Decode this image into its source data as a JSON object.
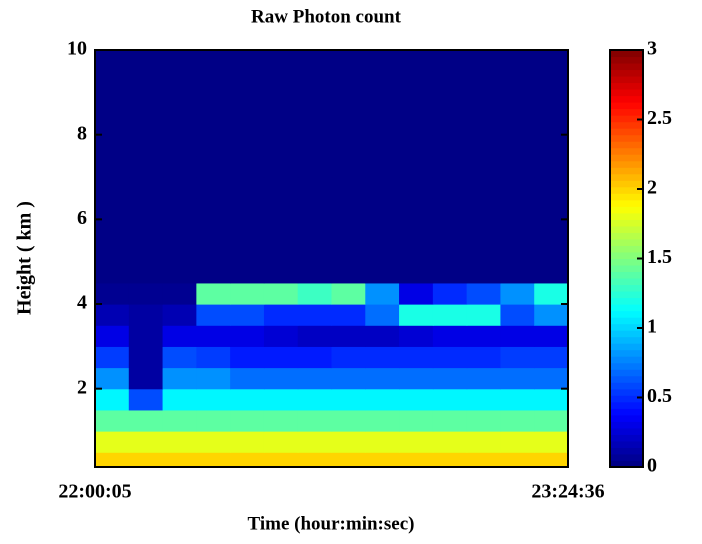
{
  "chart_data": {
    "type": "heatmap",
    "title": "Raw Photon count",
    "x_label": "Time (hour:min:sec)",
    "y_label": "Height ( km )",
    "xticks": [
      "22:00:05",
      "23:24:36"
    ],
    "ylim": [
      0.15,
      10
    ],
    "yticks": [
      2,
      4,
      6,
      8,
      10
    ],
    "ybins": [
      0.15,
      0.5,
      1,
      1.5,
      2,
      2.5,
      3,
      3.5,
      4,
      4.5,
      5,
      5.5,
      6,
      6.5,
      7,
      7.5,
      8,
      8.5,
      9,
      9.5,
      10
    ],
    "colormap": "jet",
    "clim": [
      0,
      3
    ],
    "cticks": [
      0,
      0.5,
      1,
      1.5,
      2,
      2.5,
      3
    ],
    "z": [
      [
        2.0,
        2.0,
        2.0,
        2.0,
        2.0,
        2.0,
        2.0,
        2.0,
        2.0,
        2.0,
        2.0,
        2.0,
        2.0,
        2.0
      ],
      [
        1.8,
        1.8,
        1.8,
        1.8,
        1.8,
        1.8,
        1.8,
        1.8,
        1.8,
        1.8,
        1.8,
        1.8,
        1.8,
        1.8
      ],
      [
        1.4,
        1.4,
        1.4,
        1.4,
        1.4,
        1.4,
        1.4,
        1.4,
        1.4,
        1.4,
        1.4,
        1.4,
        1.4,
        1.4
      ],
      [
        1.1,
        0.6,
        1.1,
        1.1,
        1.1,
        1.1,
        1.1,
        1.1,
        1.1,
        1.1,
        1.1,
        1.1,
        1.1,
        1.1
      ],
      [
        0.8,
        0.1,
        0.8,
        0.8,
        0.7,
        0.7,
        0.7,
        0.7,
        0.7,
        0.7,
        0.7,
        0.7,
        0.7,
        0.7
      ],
      [
        0.55,
        0.1,
        0.6,
        0.55,
        0.45,
        0.45,
        0.45,
        0.5,
        0.5,
        0.5,
        0.5,
        0.5,
        0.55,
        0.55
      ],
      [
        0.3,
        0.1,
        0.3,
        0.3,
        0.3,
        0.25,
        0.2,
        0.2,
        0.2,
        0.25,
        0.3,
        0.3,
        0.3,
        0.3
      ],
      [
        0.15,
        0.1,
        0.15,
        0.6,
        0.6,
        0.5,
        0.5,
        0.5,
        0.7,
        1.2,
        1.2,
        1.2,
        0.6,
        0.8
      ],
      [
        0.05,
        0.05,
        0.05,
        1.4,
        1.4,
        1.4,
        1.3,
        1.4,
        0.8,
        0.3,
        0.5,
        0.6,
        0.8,
        1.2
      ],
      [
        0.02,
        0.02,
        0.02,
        0.02,
        0.02,
        0.02,
        0.02,
        0.02,
        0.02,
        0.02,
        0.02,
        0.02,
        0.02,
        0.02
      ],
      [
        0.02,
        0.02,
        0.02,
        0.02,
        0.02,
        0.02,
        0.02,
        0.02,
        0.02,
        0.02,
        0.02,
        0.02,
        0.02,
        0.02
      ],
      [
        0.02,
        0.02,
        0.02,
        0.02,
        0.02,
        0.02,
        0.02,
        0.02,
        0.02,
        0.02,
        0.02,
        0.02,
        0.02,
        0.02
      ],
      [
        0.02,
        0.02,
        0.02,
        0.02,
        0.02,
        0.02,
        0.02,
        0.02,
        0.02,
        0.02,
        0.02,
        0.02,
        0.02,
        0.02
      ],
      [
        0.02,
        0.02,
        0.02,
        0.02,
        0.02,
        0.02,
        0.02,
        0.02,
        0.02,
        0.02,
        0.02,
        0.02,
        0.02,
        0.02
      ],
      [
        0.02,
        0.02,
        0.02,
        0.02,
        0.02,
        0.02,
        0.02,
        0.02,
        0.02,
        0.02,
        0.02,
        0.02,
        0.02,
        0.02
      ],
      [
        0.02,
        0.02,
        0.02,
        0.02,
        0.02,
        0.02,
        0.02,
        0.02,
        0.02,
        0.02,
        0.02,
        0.02,
        0.02,
        0.02
      ],
      [
        0.02,
        0.02,
        0.02,
        0.02,
        0.02,
        0.02,
        0.02,
        0.02,
        0.02,
        0.02,
        0.02,
        0.02,
        0.02,
        0.02
      ],
      [
        0.02,
        0.02,
        0.02,
        0.02,
        0.02,
        0.02,
        0.02,
        0.02,
        0.02,
        0.02,
        0.02,
        0.02,
        0.02,
        0.02
      ],
      [
        0.02,
        0.02,
        0.02,
        0.02,
        0.02,
        0.02,
        0.02,
        0.02,
        0.02,
        0.02,
        0.02,
        0.02,
        0.02,
        0.02
      ],
      [
        0.02,
        0.02,
        0.02,
        0.02,
        0.02,
        0.02,
        0.02,
        0.02,
        0.02,
        0.02,
        0.02,
        0.02,
        0.02,
        0.02
      ]
    ]
  }
}
